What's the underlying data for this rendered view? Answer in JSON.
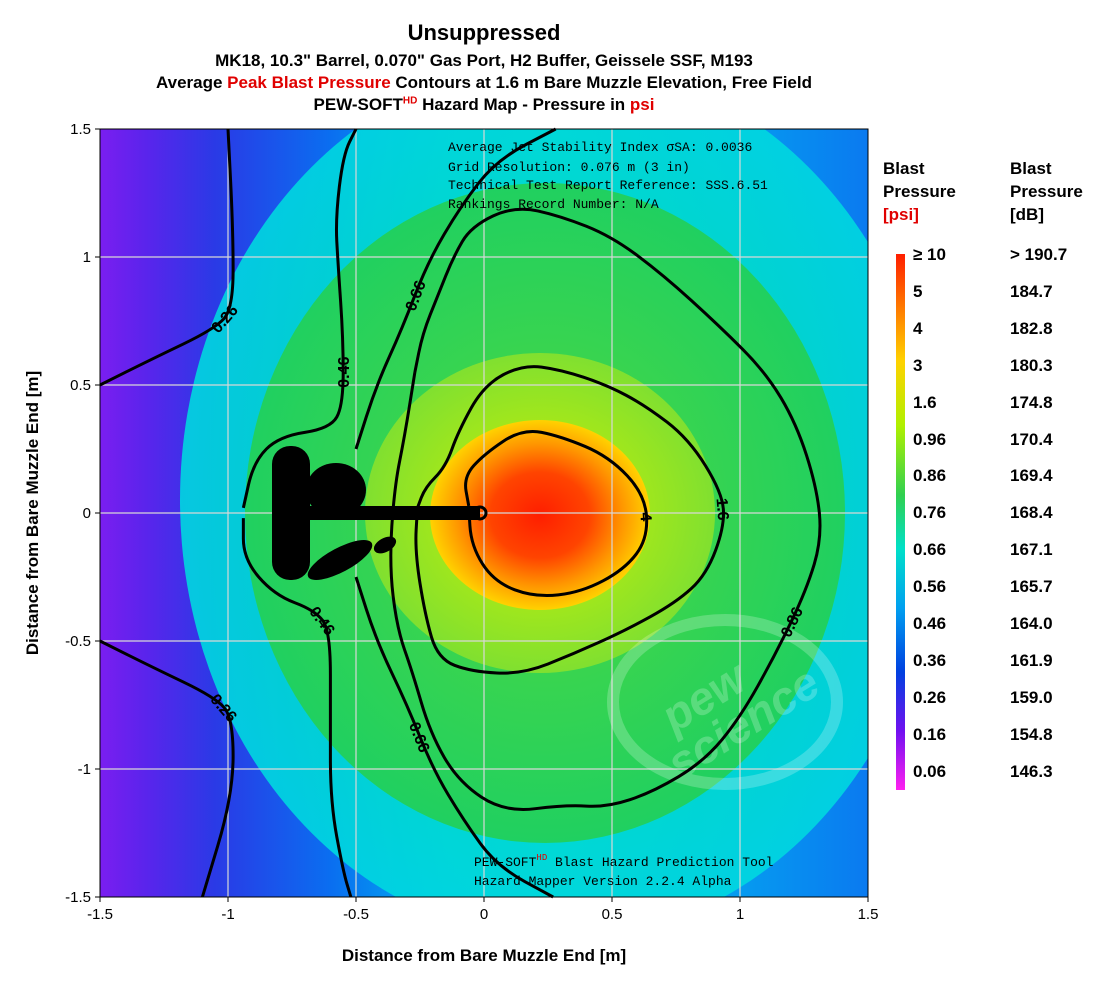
{
  "titles": {
    "main": "Unsuppressed",
    "config": "MK18, 10.3\" Barrel, 0.070\" Gas Port, H2 Buffer, Geissele SSF, M193",
    "subtitle_pre": "Average ",
    "subtitle_red": "Peak Blast Pressure",
    "subtitle_post": " Contours at 1.6 m Bare Muzzle Elevation, Free Field",
    "map_pre": "PEW-SOFT",
    "map_sup": "HD",
    "map_mid": " Hazard Map - Pressure in ",
    "map_red": "psi"
  },
  "annotations": {
    "top": [
      "Average Jet Stability Index σSA: 0.0036",
      "Grid Resolution: 0.076 m (3 in)",
      "Technical Test Report Reference: SSS.6.51",
      "Rankings Record Number: N/A"
    ],
    "bottom_tool": "PEW-SOFT",
    "bottom_sup": "HD",
    "bottom_tool_rest": " Blast Hazard Prediction Tool",
    "bottom_version": "Hazard Mapper Version 2.2.4 Alpha",
    "watermark": [
      "pew",
      "science"
    ]
  },
  "legend": {
    "psi_header": [
      "Blast",
      "Pressure",
      "[psi]"
    ],
    "db_header": [
      "Blast",
      "Pressure",
      "[dB]"
    ],
    "rows": [
      {
        "psi": "≥ 10",
        "db": "> 190.7"
      },
      {
        "psi": "5",
        "db": "184.7"
      },
      {
        "psi": "4",
        "db": "182.8"
      },
      {
        "psi": "3",
        "db": "180.3"
      },
      {
        "psi": "1.6",
        "db": "174.8"
      },
      {
        "psi": "0.96",
        "db": "170.4"
      },
      {
        "psi": "0.86",
        "db": "169.4"
      },
      {
        "psi": "0.76",
        "db": "168.4"
      },
      {
        "psi": "0.66",
        "db": "167.1"
      },
      {
        "psi": "0.56",
        "db": "165.7"
      },
      {
        "psi": "0.46",
        "db": "164.0"
      },
      {
        "psi": "0.36",
        "db": "161.9"
      },
      {
        "psi": "0.26",
        "db": "159.0"
      },
      {
        "psi": "0.16",
        "db": "154.8"
      },
      {
        "psi": "0.06",
        "db": "146.3"
      }
    ],
    "colors": [
      "#ff1e00",
      "#ff4400",
      "#ff9600",
      "#ffd200",
      "#d0f000",
      "#80e030",
      "#40d040",
      "#00d87c",
      "#00e0c8",
      "#00c8f0",
      "#0090f0",
      "#0050e0",
      "#3020e0",
      "#8000f0",
      "#e020f0"
    ]
  },
  "chart_data": {
    "type": "heatmap",
    "xlabel": "Distance from Bare Muzzle End [m]",
    "ylabel": "Distance from Bare Muzzle End [m]",
    "xlim": [
      -1.5,
      1.5
    ],
    "ylim": [
      -1.5,
      1.5
    ],
    "x_ticks": [
      -1.5,
      -1,
      -0.5,
      0,
      0.5,
      1,
      1.5
    ],
    "y_ticks": [
      -1.5,
      -1,
      -0.5,
      0,
      0.5,
      1,
      1.5
    ],
    "x_tick_labels": [
      "-1.5",
      "-1",
      "-0.5",
      "0",
      "0.5",
      "1",
      "1.5"
    ],
    "y_tick_labels": [
      "-1.5",
      "-1",
      "-0.5",
      "0",
      "0.5",
      "1",
      "1.5"
    ],
    "grid": true,
    "peak_location": [
      0.2,
      0
    ],
    "contours": [
      {
        "level": "4",
        "points": [
          [
            -0.06,
            0.03
          ],
          [
            -0.08,
            0.14
          ],
          [
            0.0,
            0.23
          ],
          [
            0.15,
            0.33
          ],
          [
            0.3,
            0.3
          ],
          [
            0.49,
            0.22
          ],
          [
            0.63,
            0.07
          ],
          [
            0.64,
            -0.1
          ],
          [
            0.55,
            -0.22
          ],
          [
            0.38,
            -0.31
          ],
          [
            0.2,
            -0.33
          ],
          [
            0.04,
            -0.27
          ],
          [
            -0.05,
            -0.13
          ],
          [
            -0.06,
            0.03
          ]
        ]
      },
      {
        "level": "1.6",
        "points": [
          [
            -0.26,
            0.02
          ],
          [
            -0.23,
            0.1
          ],
          [
            -0.15,
            0.18
          ],
          [
            -0.1,
            0.32
          ],
          [
            0.0,
            0.5
          ],
          [
            0.15,
            0.58
          ],
          [
            0.3,
            0.56
          ],
          [
            0.48,
            0.5
          ],
          [
            0.63,
            0.42
          ],
          [
            0.8,
            0.29
          ],
          [
            0.93,
            0.08
          ],
          [
            0.94,
            -0.05
          ],
          [
            0.87,
            -0.24
          ],
          [
            0.75,
            -0.35
          ],
          [
            0.55,
            -0.46
          ],
          [
            0.35,
            -0.55
          ],
          [
            0.15,
            -0.63
          ],
          [
            -0.05,
            -0.62
          ],
          [
            -0.18,
            -0.57
          ],
          [
            -0.23,
            -0.4
          ],
          [
            -0.27,
            -0.15
          ],
          [
            -0.26,
            0.02
          ]
        ]
      },
      {
        "level": "0.86",
        "points": [
          [
            -0.27,
            0.55
          ],
          [
            -0.24,
            0.7
          ],
          [
            -0.18,
            0.85
          ],
          [
            -0.12,
            1.0
          ],
          [
            -0.05,
            1.12
          ],
          [
            0.12,
            1.2
          ],
          [
            0.3,
            1.16
          ],
          [
            0.5,
            1.08
          ],
          [
            0.7,
            0.93
          ],
          [
            0.92,
            0.73
          ],
          [
            1.1,
            0.55
          ],
          [
            1.22,
            0.35
          ],
          [
            1.3,
            0.1
          ],
          [
            1.32,
            -0.1
          ],
          [
            1.26,
            -0.3
          ],
          [
            1.14,
            -0.55
          ],
          [
            1.0,
            -0.8
          ],
          [
            0.86,
            -0.97
          ],
          [
            0.66,
            -1.09
          ],
          [
            0.48,
            -1.15
          ],
          [
            0.32,
            -1.14
          ],
          [
            0.08,
            -1.17
          ],
          [
            -0.1,
            -1.05
          ],
          [
            -0.21,
            -0.86
          ],
          [
            -0.28,
            -0.62
          ],
          [
            -0.34,
            -0.45
          ],
          [
            -0.37,
            -0.2
          ],
          [
            -0.35,
            0.1
          ],
          [
            -0.31,
            0.3
          ],
          [
            -0.27,
            0.55
          ]
        ]
      },
      {
        "level": "0.66",
        "points": [
          [
            -0.5,
            0.25
          ],
          [
            -0.42,
            0.5
          ],
          [
            -0.32,
            0.72
          ],
          [
            -0.22,
            0.98
          ],
          [
            -0.09,
            1.2
          ],
          [
            0.05,
            1.38
          ],
          [
            0.28,
            1.5
          ]
        ]
      },
      {
        "level": "0.66",
        "points": [
          [
            -0.5,
            -0.25
          ],
          [
            -0.42,
            -0.5
          ],
          [
            -0.3,
            -0.75
          ],
          [
            -0.2,
            -1.0
          ],
          [
            -0.08,
            -1.2
          ],
          [
            0.05,
            -1.38
          ],
          [
            0.27,
            -1.5
          ]
        ]
      },
      {
        "level": "0.46",
        "points": [
          [
            -0.94,
            0.02
          ],
          [
            -0.9,
            0.2
          ],
          [
            -0.8,
            0.3
          ],
          [
            -0.6,
            0.33
          ],
          [
            -0.55,
            0.42
          ],
          [
            -0.55,
            0.68
          ],
          [
            -0.57,
            0.97
          ],
          [
            -0.58,
            1.15
          ],
          [
            -0.55,
            1.4
          ],
          [
            -0.5,
            1.5
          ]
        ]
      },
      {
        "level": "0.46",
        "points": [
          [
            -0.94,
            -0.02
          ],
          [
            -0.94,
            -0.18
          ],
          [
            -0.82,
            -0.32
          ],
          [
            -0.66,
            -0.38
          ],
          [
            -0.6,
            -0.46
          ],
          [
            -0.6,
            -0.8
          ],
          [
            -0.6,
            -1.13
          ],
          [
            -0.55,
            -1.4
          ],
          [
            -0.52,
            -1.5
          ]
        ]
      },
      {
        "level": "0.26",
        "points": [
          [
            -1.5,
            0.5
          ],
          [
            -1.3,
            0.6
          ],
          [
            -1.05,
            0.72
          ],
          [
            -0.98,
            0.8
          ],
          [
            -0.98,
            1.1
          ],
          [
            -1.0,
            1.5
          ]
        ]
      },
      {
        "level": "0.26",
        "points": [
          [
            -1.5,
            -0.5
          ],
          [
            -1.3,
            -0.6
          ],
          [
            -1.05,
            -0.72
          ],
          [
            -0.98,
            -0.8
          ],
          [
            -0.98,
            -1.1
          ],
          [
            -1.1,
            -1.5
          ]
        ]
      }
    ]
  }
}
